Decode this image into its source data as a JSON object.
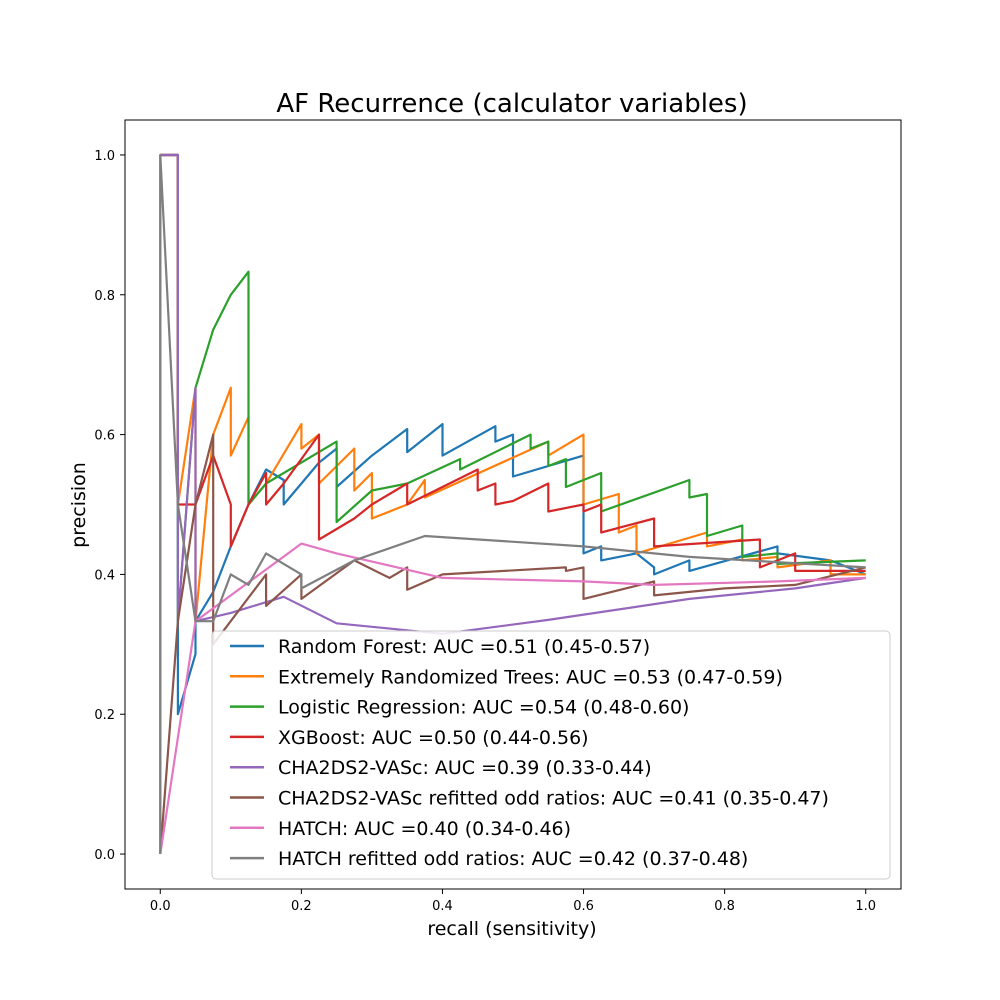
{
  "chart_data": {
    "type": "line",
    "title": "AF Recurrence (calculator variables)",
    "xlabel": "recall (sensitivity)",
    "ylabel": "precision",
    "xlim": [
      -0.05,
      1.05
    ],
    "ylim": [
      -0.05,
      1.05
    ],
    "xticks": [
      0.0,
      0.2,
      0.4,
      0.6,
      0.8,
      1.0
    ],
    "xtick_labels": [
      "0.0",
      "0.2",
      "0.4",
      "0.6",
      "0.8",
      "1.0"
    ],
    "yticks": [
      0.0,
      0.2,
      0.4,
      0.6,
      0.8,
      1.0
    ],
    "ytick_labels": [
      "0.0",
      "0.2",
      "0.4",
      "0.6",
      "0.8",
      "1.0"
    ],
    "grid": false,
    "legend_position": "lower right",
    "series": [
      {
        "name": "Random Forest: AUC =0.51 (0.45-0.57)",
        "color": "#1f77b4",
        "points": [
          [
            0,
            1.0
          ],
          [
            0.025,
            1.0
          ],
          [
            0.025,
            0.2
          ],
          [
            0.05,
            0.286
          ],
          [
            0.05,
            0.333
          ],
          [
            0.075,
            0.375
          ],
          [
            0.1,
            0.44
          ],
          [
            0.125,
            0.5
          ],
          [
            0.15,
            0.55
          ],
          [
            0.175,
            0.535
          ],
          [
            0.175,
            0.5
          ],
          [
            0.2,
            0.53
          ],
          [
            0.225,
            0.56
          ],
          [
            0.25,
            0.58
          ],
          [
            0.25,
            0.525
          ],
          [
            0.3,
            0.57
          ],
          [
            0.35,
            0.608
          ],
          [
            0.35,
            0.575
          ],
          [
            0.4,
            0.615
          ],
          [
            0.4,
            0.57
          ],
          [
            0.475,
            0.612
          ],
          [
            0.475,
            0.59
          ],
          [
            0.5,
            0.6
          ],
          [
            0.5,
            0.54
          ],
          [
            0.6,
            0.57
          ],
          [
            0.6,
            0.43
          ],
          [
            0.625,
            0.44
          ],
          [
            0.625,
            0.42
          ],
          [
            0.675,
            0.43
          ],
          [
            0.7,
            0.41
          ],
          [
            0.7,
            0.4
          ],
          [
            0.75,
            0.42
          ],
          [
            0.75,
            0.405
          ],
          [
            0.875,
            0.44
          ],
          [
            0.875,
            0.43
          ],
          [
            0.95,
            0.42
          ],
          [
            1.0,
            0.4
          ]
        ]
      },
      {
        "name": "Extremely Randomized Trees: AUC =0.53 (0.47-0.59)",
        "color": "#ff7f0e",
        "points": [
          [
            0,
            1.0
          ],
          [
            0.025,
            1.0
          ],
          [
            0.025,
            0.5
          ],
          [
            0.05,
            0.667
          ],
          [
            0.05,
            0.333
          ],
          [
            0.075,
            0.6
          ],
          [
            0.1,
            0.667
          ],
          [
            0.1,
            0.57
          ],
          [
            0.125,
            0.625
          ],
          [
            0.125,
            0.5
          ],
          [
            0.15,
            0.53
          ],
          [
            0.2,
            0.615
          ],
          [
            0.2,
            0.58
          ],
          [
            0.225,
            0.6
          ],
          [
            0.225,
            0.53
          ],
          [
            0.275,
            0.58
          ],
          [
            0.275,
            0.52
          ],
          [
            0.3,
            0.545
          ],
          [
            0.3,
            0.48
          ],
          [
            0.35,
            0.5
          ],
          [
            0.375,
            0.535
          ],
          [
            0.375,
            0.51
          ],
          [
            0.55,
            0.59
          ],
          [
            0.55,
            0.57
          ],
          [
            0.6,
            0.6
          ],
          [
            0.6,
            0.5
          ],
          [
            0.65,
            0.515
          ],
          [
            0.65,
            0.46
          ],
          [
            0.675,
            0.47
          ],
          [
            0.675,
            0.43
          ],
          [
            0.775,
            0.46
          ],
          [
            0.775,
            0.44
          ],
          [
            0.825,
            0.45
          ],
          [
            0.825,
            0.42
          ],
          [
            0.875,
            0.425
          ],
          [
            0.875,
            0.41
          ],
          [
            0.95,
            0.42
          ],
          [
            0.95,
            0.4
          ],
          [
            1.0,
            0.4
          ]
        ]
      },
      {
        "name": "Logistic Regression: AUC =0.54 (0.48-0.60)",
        "color": "#2ca02c",
        "points": [
          [
            0,
            1.0
          ],
          [
            0.025,
            1.0
          ],
          [
            0.025,
            0.333
          ],
          [
            0.05,
            0.667
          ],
          [
            0.075,
            0.75
          ],
          [
            0.1,
            0.8
          ],
          [
            0.125,
            0.833
          ],
          [
            0.125,
            0.5
          ],
          [
            0.15,
            0.53
          ],
          [
            0.25,
            0.59
          ],
          [
            0.25,
            0.475
          ],
          [
            0.3,
            0.52
          ],
          [
            0.35,
            0.53
          ],
          [
            0.425,
            0.565
          ],
          [
            0.425,
            0.55
          ],
          [
            0.525,
            0.6
          ],
          [
            0.525,
            0.58
          ],
          [
            0.55,
            0.59
          ],
          [
            0.55,
            0.555
          ],
          [
            0.575,
            0.565
          ],
          [
            0.575,
            0.525
          ],
          [
            0.625,
            0.545
          ],
          [
            0.625,
            0.49
          ],
          [
            0.75,
            0.535
          ],
          [
            0.75,
            0.51
          ],
          [
            0.775,
            0.515
          ],
          [
            0.775,
            0.455
          ],
          [
            0.825,
            0.47
          ],
          [
            0.825,
            0.425
          ],
          [
            0.875,
            0.43
          ],
          [
            0.875,
            0.415
          ],
          [
            1.0,
            0.42
          ]
        ]
      },
      {
        "name": "XGBoost: AUC =0.50 (0.44-0.56)",
        "color": "#d62728",
        "points": [
          [
            0,
            1.0
          ],
          [
            0.025,
            1.0
          ],
          [
            0.025,
            0.5
          ],
          [
            0.05,
            0.5
          ],
          [
            0.075,
            0.57
          ],
          [
            0.1,
            0.5
          ],
          [
            0.1,
            0.44
          ],
          [
            0.125,
            0.5
          ],
          [
            0.15,
            0.545
          ],
          [
            0.15,
            0.5
          ],
          [
            0.175,
            0.53
          ],
          [
            0.225,
            0.6
          ],
          [
            0.225,
            0.45
          ],
          [
            0.275,
            0.48
          ],
          [
            0.3,
            0.5
          ],
          [
            0.35,
            0.53
          ],
          [
            0.35,
            0.5
          ],
          [
            0.45,
            0.55
          ],
          [
            0.45,
            0.52
          ],
          [
            0.475,
            0.53
          ],
          [
            0.475,
            0.5
          ],
          [
            0.5,
            0.505
          ],
          [
            0.55,
            0.53
          ],
          [
            0.55,
            0.49
          ],
          [
            0.6,
            0.5
          ],
          [
            0.6,
            0.49
          ],
          [
            0.625,
            0.5
          ],
          [
            0.625,
            0.46
          ],
          [
            0.7,
            0.48
          ],
          [
            0.7,
            0.44
          ],
          [
            0.85,
            0.45
          ],
          [
            0.85,
            0.41
          ],
          [
            0.9,
            0.43
          ],
          [
            0.9,
            0.405
          ],
          [
            1.0,
            0.405
          ]
        ]
      },
      {
        "name": "CHA2DS2-VASc: AUC =0.39 (0.33-0.44)",
        "color": "#9467bd",
        "points": [
          [
            0,
            0.0
          ],
          [
            0,
            1.0
          ],
          [
            0.025,
            1.0
          ],
          [
            0.025,
            0.333
          ],
          [
            0.05,
            0.667
          ],
          [
            0.05,
            0.333
          ],
          [
            0.1,
            0.345
          ],
          [
            0.175,
            0.368
          ],
          [
            0.25,
            0.33
          ],
          [
            0.4,
            0.315
          ],
          [
            0.55,
            0.335
          ],
          [
            0.75,
            0.365
          ],
          [
            0.9,
            0.38
          ],
          [
            1.0,
            0.395
          ]
        ]
      },
      {
        "name": "CHA2DS2-VASc refitted odd ratios: AUC =0.41 (0.35-0.47)",
        "color": "#8c564b",
        "points": [
          [
            0,
            0.0
          ],
          [
            0.025,
            0.333
          ],
          [
            0.05,
            0.5
          ],
          [
            0.075,
            0.6
          ],
          [
            0.075,
            0.3
          ],
          [
            0.15,
            0.4
          ],
          [
            0.15,
            0.355
          ],
          [
            0.2,
            0.4
          ],
          [
            0.2,
            0.365
          ],
          [
            0.275,
            0.42
          ],
          [
            0.325,
            0.395
          ],
          [
            0.35,
            0.41
          ],
          [
            0.35,
            0.378
          ],
          [
            0.4,
            0.4
          ],
          [
            0.575,
            0.41
          ],
          [
            0.575,
            0.405
          ],
          [
            0.6,
            0.41
          ],
          [
            0.6,
            0.365
          ],
          [
            0.7,
            0.39
          ],
          [
            0.7,
            0.37
          ],
          [
            0.8,
            0.38
          ],
          [
            0.9,
            0.385
          ],
          [
            1.0,
            0.41
          ]
        ]
      },
      {
        "name": "HATCH: AUC =0.40 (0.34-0.46)",
        "color": "#e377c2",
        "points": [
          [
            0,
            0.0
          ],
          [
            0.05,
            0.333
          ],
          [
            0.2,
            0.444
          ],
          [
            0.25,
            0.43
          ],
          [
            0.4,
            0.395
          ],
          [
            0.6,
            0.39
          ],
          [
            0.7,
            0.385
          ],
          [
            0.875,
            0.39
          ],
          [
            1.0,
            0.395
          ]
        ]
      },
      {
        "name": "HATCH refitted odd ratios: AUC =0.42 (0.37-0.48)",
        "color": "#7f7f7f",
        "points": [
          [
            0,
            0.0
          ],
          [
            0,
            1.0
          ],
          [
            0.025,
            0.5
          ],
          [
            0.05,
            0.333
          ],
          [
            0.075,
            0.333
          ],
          [
            0.1,
            0.4
          ],
          [
            0.125,
            0.385
          ],
          [
            0.15,
            0.43
          ],
          [
            0.2,
            0.4
          ],
          [
            0.2,
            0.38
          ],
          [
            0.275,
            0.42
          ],
          [
            0.375,
            0.455
          ],
          [
            0.6,
            0.44
          ],
          [
            0.75,
            0.425
          ],
          [
            1.0,
            0.41
          ]
        ]
      }
    ]
  }
}
